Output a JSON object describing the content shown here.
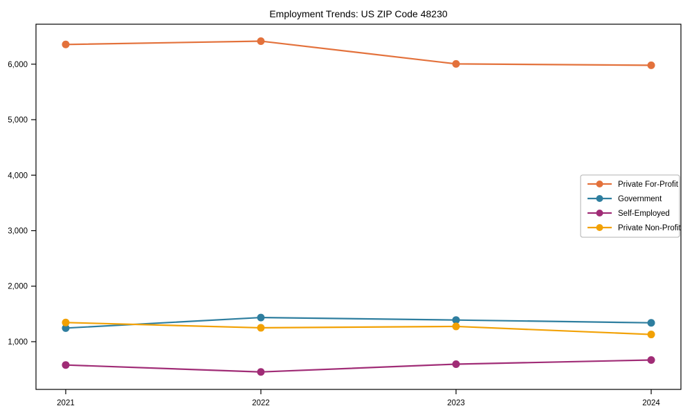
{
  "chart_data": {
    "type": "line",
    "title": "Employment Trends: US ZIP Code 48230",
    "xlabel": "",
    "ylabel": "",
    "categories": [
      "2021",
      "2022",
      "2023",
      "2024"
    ],
    "series": [
      {
        "name": "Private For-Profit",
        "color": "#E3713B",
        "values": [
          6355,
          6415,
          6005,
          5980
        ]
      },
      {
        "name": "Government",
        "color": "#2E7E9F",
        "values": [
          1245,
          1435,
          1390,
          1340
        ]
      },
      {
        "name": "Self-Employed",
        "color": "#A02C76",
        "values": [
          580,
          455,
          595,
          670
        ]
      },
      {
        "name": "Private Non-Profit",
        "color": "#F2A104",
        "values": [
          1345,
          1250,
          1275,
          1130
        ]
      }
    ],
    "ylim": [
      140,
      6720
    ],
    "yticks": [
      1000,
      2000,
      3000,
      4000,
      5000,
      6000
    ],
    "ytick_labels": [
      "1,000",
      "2,000",
      "3,000",
      "4,000",
      "5,000",
      "6,000"
    ],
    "grid": false,
    "legend_position": "center right",
    "colors": {
      "spine": "#000000",
      "background": "#ffffff",
      "legend_border": "#b0b0b0"
    }
  }
}
